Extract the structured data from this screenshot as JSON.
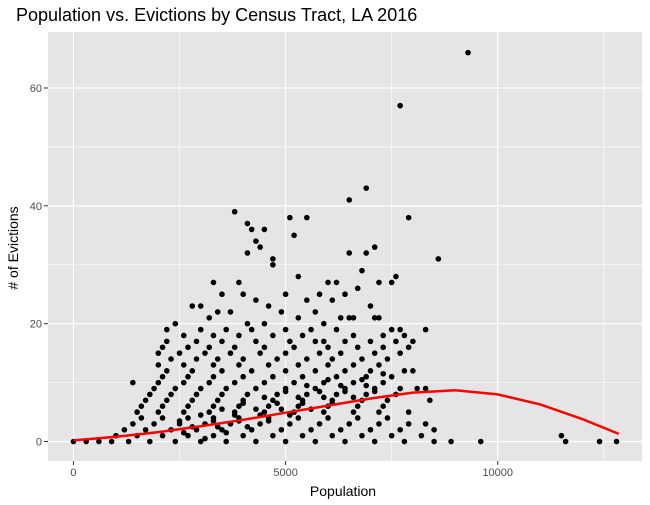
{
  "chart_data": {
    "type": "scatter",
    "title": "Population vs. Evictions by Census Tract, LA 2016",
    "xlabel": "Population",
    "ylabel": "# of Evictions",
    "xlim": [
      -600,
      13400
    ],
    "ylim": [
      -3.3,
      69.5
    ],
    "x_ticks": [
      0,
      5000,
      10000
    ],
    "x_tick_labels": [
      "0",
      "5000",
      "10000"
    ],
    "y_ticks": [
      0,
      20,
      40,
      60
    ],
    "y_tick_labels": [
      "0",
      "20",
      "40",
      "60"
    ],
    "x_minor": [
      2500,
      7500,
      12500
    ],
    "y_minor": [
      10,
      30,
      50
    ],
    "grid": true,
    "legend": "none",
    "colors": {
      "panel": "#e5e5e5",
      "grid": "#ffffff",
      "points": "#000000",
      "trend": "#ff0000"
    },
    "points": [
      [
        9300,
        66
      ],
      [
        7700,
        57
      ],
      [
        6900,
        43
      ],
      [
        6500,
        41
      ],
      [
        3800,
        39
      ],
      [
        7900,
        38
      ],
      [
        5100,
        38
      ],
      [
        5500,
        38
      ],
      [
        4100,
        37
      ],
      [
        4200,
        36
      ],
      [
        4500,
        36
      ],
      [
        5200,
        35
      ],
      [
        4300,
        34
      ],
      [
        4100,
        32
      ],
      [
        4400,
        33
      ],
      [
        7100,
        33
      ],
      [
        6900,
        32
      ],
      [
        6500,
        32
      ],
      [
        4700,
        31
      ],
      [
        8600,
        31
      ],
      [
        4700,
        30
      ],
      [
        6800,
        29
      ],
      [
        5300,
        28
      ],
      [
        7600,
        28
      ],
      [
        3300,
        27
      ],
      [
        3900,
        27
      ],
      [
        6000,
        27
      ],
      [
        6200,
        27
      ],
      [
        7200,
        27
      ],
      [
        6700,
        26
      ],
      [
        7500,
        27
      ],
      [
        4000,
        25
      ],
      [
        3500,
        25
      ],
      [
        5000,
        25
      ],
      [
        5800,
        25
      ],
      [
        6400,
        25
      ],
      [
        2800,
        23
      ],
      [
        3000,
        23
      ],
      [
        4300,
        24
      ],
      [
        4600,
        23
      ],
      [
        5500,
        24
      ],
      [
        6100,
        24
      ],
      [
        7000,
        23
      ],
      [
        3400,
        22
      ],
      [
        3700,
        22
      ],
      [
        4900,
        22
      ],
      [
        5700,
        22
      ],
      [
        6300,
        21
      ],
      [
        6600,
        21
      ],
      [
        7200,
        21
      ],
      [
        2400,
        20
      ],
      [
        3200,
        21
      ],
      [
        4100,
        20
      ],
      [
        4500,
        20
      ],
      [
        5300,
        21
      ],
      [
        5900,
        20
      ],
      [
        6500,
        21
      ],
      [
        7100,
        21
      ],
      [
        2200,
        19
      ],
      [
        3000,
        19
      ],
      [
        3600,
        19
      ],
      [
        4200,
        19
      ],
      [
        5000,
        19
      ],
      [
        5600,
        19
      ],
      [
        6200,
        19
      ],
      [
        7500,
        19
      ],
      [
        7700,
        19
      ],
      [
        8300,
        19
      ],
      [
        2600,
        18
      ],
      [
        3300,
        18
      ],
      [
        3900,
        18
      ],
      [
        4700,
        18
      ],
      [
        5400,
        18
      ],
      [
        5900,
        17
      ],
      [
        6600,
        18
      ],
      [
        7300,
        18
      ],
      [
        7800,
        18
      ],
      [
        2200,
        17
      ],
      [
        2900,
        17
      ],
      [
        3500,
        17
      ],
      [
        4300,
        17
      ],
      [
        5100,
        17
      ],
      [
        5700,
        17
      ],
      [
        6400,
        17
      ],
      [
        7000,
        17
      ],
      [
        7600,
        17
      ],
      [
        8000,
        17
      ],
      [
        2100,
        16
      ],
      [
        2700,
        16
      ],
      [
        3200,
        16
      ],
      [
        3800,
        16
      ],
      [
        4500,
        16
      ],
      [
        5200,
        16
      ],
      [
        6000,
        16
      ],
      [
        6700,
        16
      ],
      [
        7300,
        16
      ],
      [
        7900,
        16
      ],
      [
        2000,
        15
      ],
      [
        2500,
        15
      ],
      [
        3100,
        15
      ],
      [
        3700,
        15
      ],
      [
        4400,
        15
      ],
      [
        5000,
        15
      ],
      [
        5800,
        15
      ],
      [
        6300,
        15
      ],
      [
        7100,
        15
      ],
      [
        7700,
        15
      ],
      [
        2300,
        14
      ],
      [
        2900,
        14
      ],
      [
        3400,
        14
      ],
      [
        4000,
        14
      ],
      [
        4800,
        14
      ],
      [
        5500,
        14
      ],
      [
        6100,
        14
      ],
      [
        6800,
        14
      ],
      [
        7400,
        14
      ],
      [
        2000,
        13
      ],
      [
        2600,
        13
      ],
      [
        3300,
        13
      ],
      [
        3900,
        13
      ],
      [
        4600,
        13
      ],
      [
        5300,
        13
      ],
      [
        6000,
        13
      ],
      [
        6600,
        13
      ],
      [
        7200,
        13
      ],
      [
        2200,
        12
      ],
      [
        2800,
        12
      ],
      [
        3500,
        12
      ],
      [
        4200,
        12
      ],
      [
        5000,
        12
      ],
      [
        5700,
        12
      ],
      [
        6400,
        12
      ],
      [
        7000,
        12
      ],
      [
        7800,
        12
      ],
      [
        8000,
        12
      ],
      [
        2100,
        11
      ],
      [
        2700,
        11
      ],
      [
        3300,
        11
      ],
      [
        4000,
        11
      ],
      [
        4700,
        11
      ],
      [
        5400,
        11
      ],
      [
        6200,
        11
      ],
      [
        6900,
        11
      ],
      [
        7500,
        11
      ],
      [
        1400,
        10
      ],
      [
        2000,
        10
      ],
      [
        2600,
        10
      ],
      [
        3200,
        10
      ],
      [
        3800,
        10
      ],
      [
        4500,
        10
      ],
      [
        5200,
        10
      ],
      [
        5900,
        10
      ],
      [
        6600,
        10
      ],
      [
        7300,
        10
      ],
      [
        1900,
        9
      ],
      [
        2400,
        9
      ],
      [
        3000,
        9
      ],
      [
        3600,
        9
      ],
      [
        4300,
        9
      ],
      [
        5000,
        9
      ],
      [
        5700,
        9
      ],
      [
        6400,
        9
      ],
      [
        7100,
        9
      ],
      [
        7700,
        9
      ],
      [
        8100,
        9
      ],
      [
        8300,
        9
      ],
      [
        1800,
        8
      ],
      [
        2300,
        8
      ],
      [
        2900,
        8
      ],
      [
        3500,
        8
      ],
      [
        4100,
        8
      ],
      [
        4800,
        8
      ],
      [
        5500,
        8
      ],
      [
        6200,
        8
      ],
      [
        6900,
        8
      ],
      [
        7600,
        8
      ],
      [
        1700,
        7
      ],
      [
        2200,
        7
      ],
      [
        2800,
        7
      ],
      [
        3400,
        7
      ],
      [
        4000,
        7
      ],
      [
        4700,
        7
      ],
      [
        5400,
        7
      ],
      [
        6100,
        7
      ],
      [
        6800,
        7
      ],
      [
        7400,
        7
      ],
      [
        8400,
        7
      ],
      [
        1600,
        6
      ],
      [
        2100,
        6
      ],
      [
        2700,
        6
      ],
      [
        3300,
        6
      ],
      [
        3900,
        6
      ],
      [
        4600,
        6
      ],
      [
        5300,
        6
      ],
      [
        6000,
        6
      ],
      [
        6700,
        6
      ],
      [
        7300,
        6
      ],
      [
        1500,
        5
      ],
      [
        2000,
        5
      ],
      [
        2600,
        5
      ],
      [
        3200,
        5
      ],
      [
        3800,
        5
      ],
      [
        4500,
        5
      ],
      [
        5200,
        5
      ],
      [
        5900,
        5
      ],
      [
        6600,
        5
      ],
      [
        7200,
        5
      ],
      [
        7900,
        5
      ],
      [
        1600,
        4
      ],
      [
        2100,
        4
      ],
      [
        2700,
        4
      ],
      [
        3300,
        4
      ],
      [
        3900,
        4
      ],
      [
        4600,
        4
      ],
      [
        5300,
        4
      ],
      [
        6000,
        4
      ],
      [
        6700,
        4
      ],
      [
        7400,
        4
      ],
      [
        1400,
        3
      ],
      [
        1900,
        3
      ],
      [
        2500,
        3
      ],
      [
        3100,
        3
      ],
      [
        3700,
        3
      ],
      [
        4400,
        3
      ],
      [
        5100,
        3
      ],
      [
        5800,
        3
      ],
      [
        6500,
        3
      ],
      [
        7200,
        3
      ],
      [
        7900,
        3
      ],
      [
        8300,
        3
      ],
      [
        1200,
        2
      ],
      [
        1700,
        2
      ],
      [
        2300,
        2
      ],
      [
        2900,
        2
      ],
      [
        3500,
        2
      ],
      [
        4200,
        2
      ],
      [
        4900,
        2
      ],
      [
        5600,
        2
      ],
      [
        6300,
        2
      ],
      [
        7000,
        2
      ],
      [
        7700,
        2
      ],
      [
        8500,
        2
      ],
      [
        1000,
        1
      ],
      [
        1500,
        1
      ],
      [
        2100,
        1
      ],
      [
        2700,
        1
      ],
      [
        3300,
        1
      ],
      [
        4000,
        1
      ],
      [
        4700,
        1
      ],
      [
        5400,
        1
      ],
      [
        6100,
        1
      ],
      [
        6800,
        1
      ],
      [
        7500,
        1
      ],
      [
        8200,
        1
      ],
      [
        0,
        0
      ],
      [
        300,
        0
      ],
      [
        600,
        0
      ],
      [
        900,
        0
      ],
      [
        1300,
        0
      ],
      [
        1800,
        0
      ],
      [
        2400,
        0
      ],
      [
        3000,
        0
      ],
      [
        3600,
        0
      ],
      [
        4300,
        0
      ],
      [
        5000,
        0
      ],
      [
        5700,
        0
      ],
      [
        6400,
        0
      ],
      [
        7100,
        0
      ],
      [
        7800,
        0
      ],
      [
        8500,
        0
      ],
      [
        8900,
        0
      ],
      [
        9600,
        0
      ],
      [
        11600,
        0
      ],
      [
        12400,
        0
      ],
      [
        12800,
        0
      ],
      [
        11500,
        1
      ],
      [
        2500,
        3.5
      ],
      [
        3000,
        4.5
      ],
      [
        3500,
        5.5
      ],
      [
        4000,
        6.5
      ],
      [
        4500,
        7.5
      ],
      [
        5000,
        8.5
      ],
      [
        5500,
        9.5
      ],
      [
        6000,
        10.5
      ],
      [
        3100,
        0.5
      ],
      [
        3600,
        1.5
      ],
      [
        4100,
        2.5
      ],
      [
        4600,
        3.5
      ],
      [
        5100,
        4.5
      ],
      [
        5600,
        5.5
      ],
      [
        6100,
        6.5
      ],
      [
        6600,
        7.5
      ],
      [
        7100,
        8.5
      ],
      [
        2800,
        2.5
      ],
      [
        3300,
        3.5
      ],
      [
        3800,
        4.5
      ],
      [
        4300,
        5.5
      ],
      [
        4800,
        6.5
      ],
      [
        5300,
        7.5
      ],
      [
        5800,
        8.5
      ],
      [
        6300,
        9.5
      ],
      [
        6800,
        10.5
      ],
      [
        7300,
        11.5
      ],
      [
        2600,
        1.5
      ],
      [
        3400,
        2.5
      ],
      [
        3900,
        3.5
      ],
      [
        4400,
        4.5
      ],
      [
        4900,
        5.5
      ],
      [
        5400,
        6.5
      ],
      [
        5900,
        7.5
      ],
      [
        6400,
        8.5
      ],
      [
        6900,
        9.5
      ]
    ],
    "trend_line": {
      "x": [
        0,
        1000,
        2000,
        3000,
        4000,
        5000,
        6000,
        7000,
        8000,
        9000,
        10000,
        11000,
        12000,
        12850
      ],
      "y": [
        0.2,
        0.8,
        1.6,
        2.6,
        3.7,
        4.9,
        6.1,
        7.3,
        8.3,
        8.7,
        8.0,
        6.3,
        3.8,
        1.3
      ]
    }
  }
}
